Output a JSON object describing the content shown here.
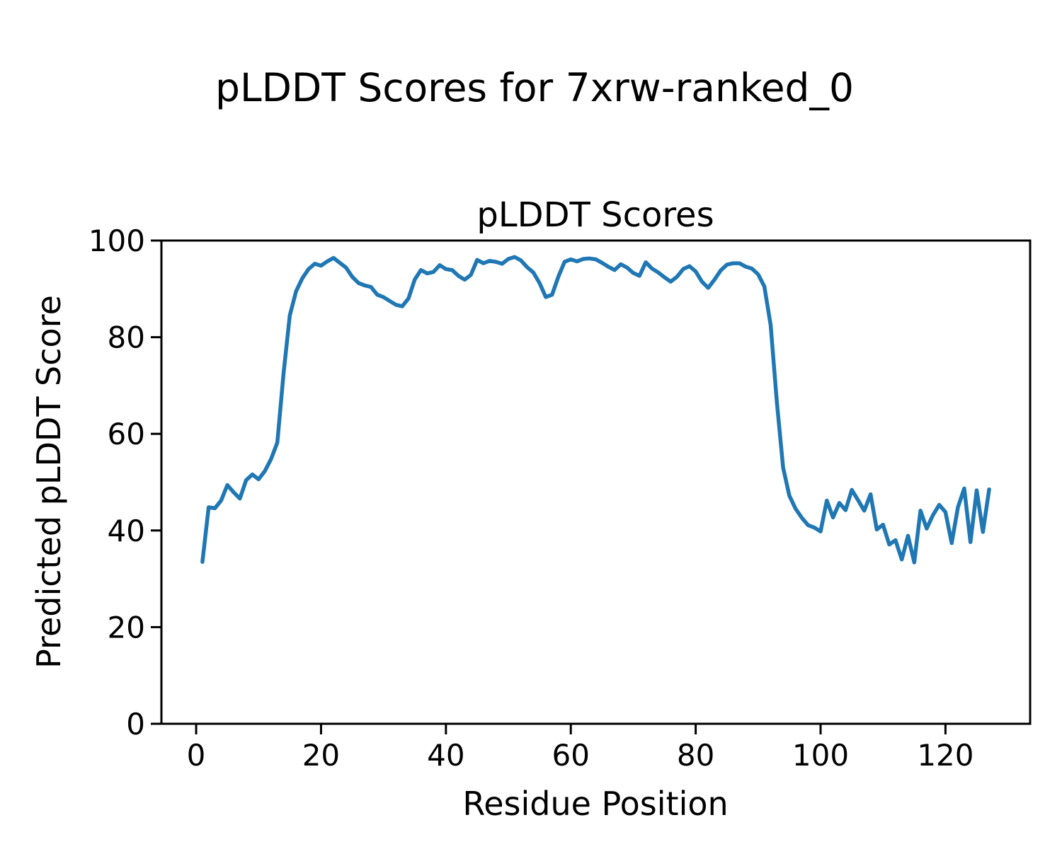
{
  "figure": {
    "suptitle": "pLDDT Scores for 7xrw-ranked_0"
  },
  "chart_data": {
    "type": "line",
    "title": "pLDDT Scores",
    "xlabel": "Residue Position",
    "ylabel": "Predicted pLDDT Score",
    "series_name": "pLDDT per residue",
    "line_color": "#1f77b4",
    "grid": false,
    "legend": "none",
    "x_start": 1,
    "xlim": [
      -5.56,
      133.56
    ],
    "ylim": [
      0,
      100
    ],
    "xticks": [
      0,
      20,
      40,
      60,
      80,
      100,
      120
    ],
    "yticks": [
      0,
      20,
      40,
      60,
      80,
      100
    ],
    "values": [
      33.5,
      44.8,
      44.6,
      46.2,
      49.4,
      47.9,
      46.6,
      50.4,
      51.6,
      50.6,
      52.3,
      54.8,
      58.2,
      72.5,
      84.5,
      89.5,
      92.2,
      94.1,
      95.2,
      94.8,
      95.7,
      96.4,
      95.4,
      94.4,
      92.5,
      91.2,
      90.7,
      90.4,
      88.8,
      88.3,
      87.5,
      86.7,
      86.4,
      88.0,
      91.9,
      93.9,
      93.2,
      93.5,
      94.9,
      94.1,
      93.9,
      92.7,
      91.9,
      92.9,
      96.0,
      95.3,
      95.8,
      95.6,
      95.2,
      96.2,
      96.6,
      95.9,
      94.5,
      93.4,
      91.2,
      88.3,
      88.8,
      92.5,
      95.6,
      96.1,
      95.7,
      96.2,
      96.3,
      96.1,
      95.4,
      94.6,
      93.9,
      95.1,
      94.4,
      93.3,
      92.7,
      95.5,
      94.2,
      93.4,
      92.4,
      91.5,
      92.5,
      94.1,
      94.7,
      93.6,
      91.5,
      90.2,
      91.9,
      93.8,
      95.0,
      95.3,
      95.3,
      94.6,
      94.2,
      93.0,
      90.5,
      82.5,
      66.5,
      53.0,
      47.2,
      44.5,
      42.6,
      41.1,
      40.6,
      39.8,
      46.2,
      42.7,
      45.7,
      44.2,
      48.4,
      46.3,
      44.1,
      47.5,
      40.2,
      41.2,
      37.1,
      38.0,
      34.0,
      38.9,
      33.4,
      44.1,
      40.4,
      43.2,
      45.3,
      43.8,
      37.4,
      44.8,
      48.7,
      37.6,
      48.3,
      39.7,
      48.5
    ]
  }
}
